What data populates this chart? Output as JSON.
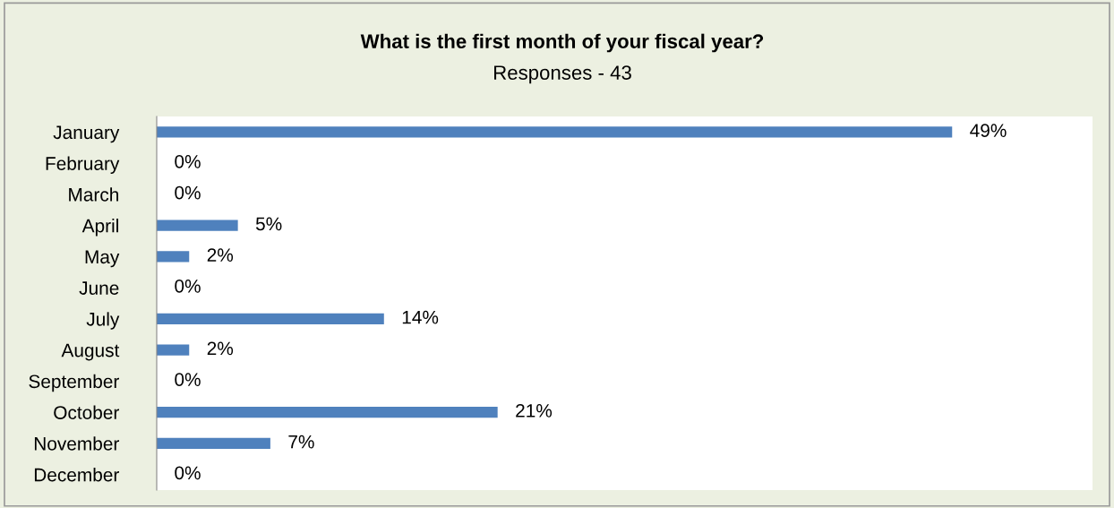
{
  "chart_data": {
    "type": "bar",
    "orientation": "horizontal",
    "title": "What is the first month of your fiscal year?",
    "subtitle": "Responses - 43",
    "categories": [
      "January",
      "February",
      "March",
      "April",
      "May",
      "June",
      "July",
      "August",
      "September",
      "October",
      "November",
      "December"
    ],
    "values": [
      49,
      0,
      0,
      5,
      2,
      0,
      14,
      2,
      0,
      21,
      7,
      0
    ],
    "value_labels": [
      "49%",
      "0%",
      "0%",
      "5%",
      "2%",
      "0%",
      "14%",
      "2%",
      "0%",
      "21%",
      "7%",
      "0%"
    ],
    "color": "#4f81bd",
    "tick_labels": "y",
    "grid": false,
    "legend": false
  }
}
